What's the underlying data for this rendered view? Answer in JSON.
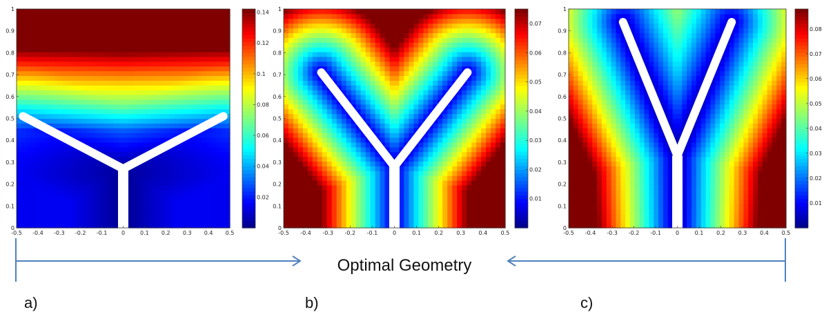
{
  "chart_data": [
    {
      "type": "heatmap",
      "panel_label": "a)",
      "x": {
        "ticks": [
          "-0.5",
          "-0.4",
          "-0.3",
          "-0.2",
          "-0.1",
          "0",
          "0.1",
          "0.2",
          "0.3",
          "0.4",
          "0.5"
        ],
        "range": [
          -0.5,
          0.5
        ]
      },
      "y": {
        "ticks": [
          "0",
          "0.1",
          "0.2",
          "0.3",
          "0.4",
          "0.5",
          "0.6",
          "0.7",
          "0.8",
          "0.9",
          "1"
        ],
        "range": [
          0,
          1
        ]
      },
      "colorbar": {
        "ticks": [
          "0.02",
          "0.04",
          "0.06",
          "0.08",
          "0.1",
          "0.12",
          "0.14"
        ],
        "range": [
          0,
          0.142
        ]
      },
      "colormap": "jet",
      "geometry": {
        "stem": [
          [
            0,
            0
          ],
          [
            0,
            0.27
          ]
        ],
        "arms": [
          [
            [
              0,
              0.27
            ],
            [
              -0.47,
              0.51
            ]
          ],
          [
            [
              0,
              0.27
            ],
            [
              0.47,
              0.51
            ]
          ]
        ]
      }
    },
    {
      "type": "heatmap",
      "panel_label": "b)",
      "x": {
        "ticks": [
          "-0.5",
          "-0.4",
          "-0.3",
          "-0.2",
          "-0.1",
          "0",
          "0.1",
          "0.2",
          "0.3",
          "0.4",
          "0.5"
        ],
        "range": [
          -0.5,
          0.5
        ]
      },
      "y": {
        "ticks": [
          "0",
          "0.1",
          "0.2",
          "0.3",
          "0.4",
          "0.5",
          "0.6",
          "0.7",
          "0.8",
          "0.9",
          "1"
        ],
        "range": [
          0,
          1
        ]
      },
      "colorbar": {
        "ticks": [
          "0.01",
          "0.02",
          "0.03",
          "0.04",
          "0.05",
          "0.06",
          "0.07"
        ],
        "range": [
          0,
          0.075
        ]
      },
      "colormap": "jet",
      "geometry": {
        "stem": [
          [
            0,
            0
          ],
          [
            0,
            0.28
          ]
        ],
        "arms": [
          [
            [
              0,
              0.28
            ],
            [
              -0.33,
              0.71
            ]
          ],
          [
            [
              0,
              0.28
            ],
            [
              0.33,
              0.71
            ]
          ]
        ]
      }
    },
    {
      "type": "heatmap",
      "panel_label": "c)",
      "x": {
        "ticks": [
          "-0.5",
          "-0.4",
          "-0.3",
          "-0.2",
          "-0.1",
          "0",
          "0.1",
          "0.2",
          "0.3",
          "0.4",
          "0.5"
        ],
        "range": [
          -0.5,
          0.5
        ]
      },
      "y": {
        "ticks": [
          "0",
          "0.1",
          "0.2",
          "0.3",
          "0.4",
          "0.5",
          "0.6",
          "0.7",
          "0.8",
          "0.9",
          "1"
        ],
        "range": [
          0,
          1
        ]
      },
      "colorbar": {
        "ticks": [
          "0.01",
          "0.02",
          "0.03",
          "0.04",
          "0.05",
          "0.06",
          "0.07",
          "0.08"
        ],
        "range": [
          0,
          0.088
        ]
      },
      "colormap": "jet",
      "geometry": {
        "stem": [
          [
            0,
            0
          ],
          [
            0,
            0.33
          ]
        ],
        "arms": [
          [
            [
              0,
              0.33
            ],
            [
              -0.25,
              0.94
            ]
          ],
          [
            [
              0,
              0.33
            ],
            [
              0.25,
              0.94
            ]
          ]
        ]
      }
    }
  ],
  "annotation": {
    "text": "Optimal Geometry",
    "arrow_color": "#4f81bd"
  }
}
